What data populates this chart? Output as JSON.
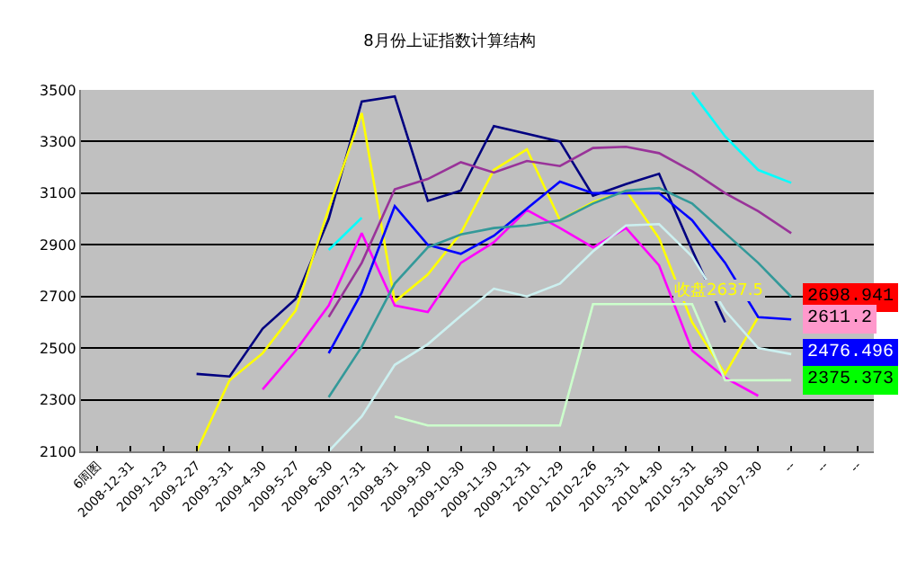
{
  "chart_data": {
    "type": "line",
    "title": "8月份上证指数计算结构",
    "categories": [
      "6周图",
      "2008-12-31",
      "2009-1-23",
      "2009-2-27",
      "2009-3-31",
      "2009-4-30",
      "2009-5-27",
      "2009-6-30",
      "2009-7-31",
      "2009-8-31",
      "2009-9-30",
      "2009-10-30",
      "2009-11-30",
      "2009-12-31",
      "2010-1-29",
      "2010-2-26",
      "2010-3-31",
      "2010-4-30",
      "2010-5-31",
      "2010-6-30",
      "2010-7-30",
      "--",
      "--",
      "--"
    ],
    "series": [
      {
        "color": "#000080",
        "values": [
          null,
          null,
          null,
          2400,
          2390,
          2575,
          2690,
          3000,
          3455,
          3475,
          3070,
          3110,
          3360,
          3330,
          3300,
          3090,
          3135,
          3175,
          2880,
          2600,
          null,
          null,
          null,
          null
        ]
      },
      {
        "color": "#ffff00",
        "values": [
          null,
          null,
          null,
          2100,
          2375,
          2480,
          2645,
          3040,
          3410,
          2680,
          2785,
          2945,
          3190,
          3270,
          2995,
          3065,
          3110,
          2925,
          2600,
          2400,
          2620,
          null,
          null,
          null
        ]
      },
      {
        "color": "#ff00ff",
        "values": [
          null,
          null,
          null,
          null,
          null,
          2340,
          2490,
          2665,
          2945,
          2665,
          2640,
          2830,
          2910,
          3035,
          2965,
          2890,
          2965,
          2820,
          2490,
          2385,
          2315,
          null,
          null,
          null
        ]
      },
      {
        "color": "#00ffff",
        "values": [
          null,
          null,
          null,
          null,
          null,
          null,
          null,
          2880,
          3005,
          null,
          null,
          null,
          null,
          null,
          null,
          null,
          null,
          null,
          3490,
          3320,
          3190,
          3140,
          null,
          null
        ]
      },
      {
        "color": "#993399",
        "values": [
          null,
          null,
          null,
          null,
          null,
          null,
          null,
          2620,
          2830,
          3115,
          3155,
          3220,
          3180,
          3225,
          3205,
          3275,
          3280,
          3255,
          3185,
          3100,
          3030,
          2945,
          null,
          null
        ]
      },
      {
        "color": "#0000ff",
        "values": [
          null,
          null,
          null,
          null,
          null,
          null,
          null,
          2480,
          2715,
          3050,
          2900,
          2865,
          2935,
          3040,
          3145,
          3100,
          3100,
          3100,
          2995,
          2830,
          2620,
          2611.2,
          null,
          null
        ],
        "value_labels": [
          null,
          null,
          null,
          null,
          null,
          null,
          null,
          null,
          null,
          null,
          null,
          null,
          null,
          null,
          null,
          null,
          null,
          null,
          null,
          null,
          null,
          "2611.2",
          null,
          null
        ]
      },
      {
        "color": "#339999",
        "values": [
          null,
          null,
          null,
          null,
          null,
          null,
          null,
          2310,
          2505,
          2750,
          2890,
          2940,
          2965,
          2975,
          2995,
          3060,
          3110,
          3120,
          3060,
          2945,
          2830,
          2698.941,
          null,
          null
        ],
        "value_labels": [
          null,
          null,
          null,
          null,
          null,
          null,
          null,
          null,
          null,
          null,
          null,
          null,
          null,
          null,
          null,
          null,
          null,
          null,
          null,
          null,
          null,
          "2698.941",
          null,
          null
        ]
      },
      {
        "color": "#ccf0f0",
        "values": [
          null,
          null,
          null,
          null,
          null,
          null,
          null,
          2100,
          2235,
          2435,
          2515,
          2625,
          2730,
          2700,
          2750,
          2875,
          2975,
          2980,
          2855,
          2645,
          2500,
          2476.496,
          null,
          null
        ],
        "value_labels": [
          null,
          null,
          null,
          null,
          null,
          null,
          null,
          null,
          null,
          null,
          null,
          null,
          null,
          null,
          null,
          null,
          null,
          null,
          null,
          null,
          null,
          "2476.496",
          null,
          null
        ]
      },
      {
        "color": "#ccffcc",
        "values": [
          null,
          null,
          null,
          null,
          null,
          null,
          null,
          null,
          null,
          2235,
          2200,
          2200,
          2200,
          2200,
          2200,
          2670,
          2670,
          2670,
          2670,
          2375,
          2375,
          2375.373,
          null,
          null
        ],
        "value_labels": [
          null,
          null,
          null,
          null,
          null,
          null,
          null,
          null,
          null,
          null,
          null,
          null,
          null,
          null,
          null,
          null,
          null,
          null,
          null,
          null,
          null,
          "2375.373",
          null,
          null
        ]
      }
    ],
    "annotations": [
      {
        "text": "收盘2637.5",
        "x": "2010-7-30",
        "y": 2680
      }
    ],
    "ylim": [
      2100,
      3500
    ],
    "yticks": [
      2100,
      2300,
      2500,
      2700,
      2900,
      3100,
      3300,
      3500
    ],
    "grid": "y",
    "marker": "none",
    "line_style": "solid"
  }
}
